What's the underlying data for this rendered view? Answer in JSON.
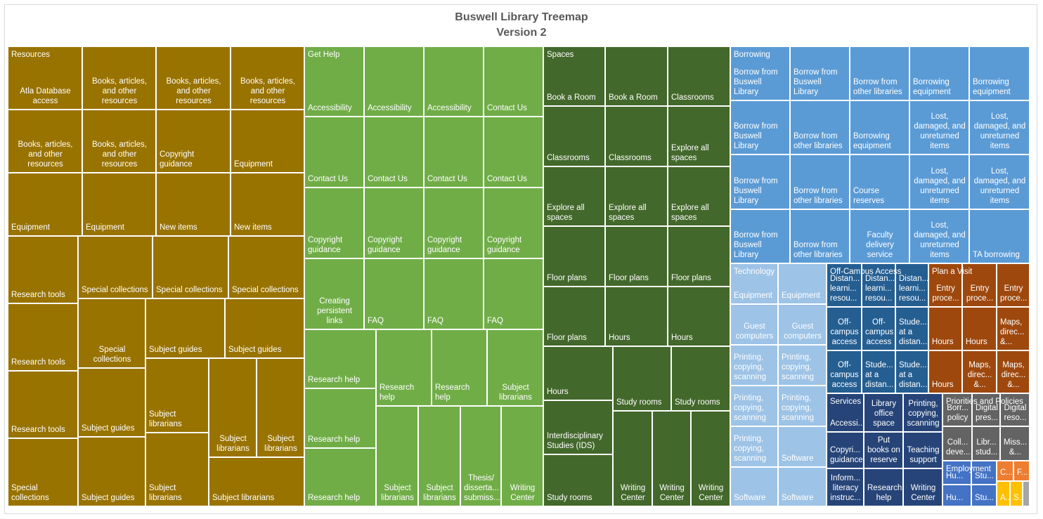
{
  "chart_data": {
    "type": "treemap",
    "title": "Buswell Library Treemap",
    "subtitle": "Version 2",
    "groups": [
      {
        "name": "Resources",
        "color": "#997300"
      },
      {
        "name": "Get Help",
        "color": "#70ad47"
      },
      {
        "name": "Spaces",
        "color": "#43682b"
      },
      {
        "name": "Borrowing",
        "color": "#5b9bd5"
      },
      {
        "name": "Technology",
        "color": "#9dc3e6"
      },
      {
        "name": "Off-Campus Access",
        "color": "#255e91"
      },
      {
        "name": "Plan a Visit",
        "color": "#9e480e"
      },
      {
        "name": "Services",
        "color": "#264478"
      },
      {
        "name": "Priorities and Policies",
        "color": "#636363"
      },
      {
        "name": "Employment",
        "color": "#4472c4"
      },
      {
        "name": "",
        "color": "#ed7d31"
      },
      {
        "name": "",
        "color": "#ffc000"
      },
      {
        "name": "",
        "color": "#a5a5a5"
      }
    ],
    "cells": [
      {
        "group": "Resources",
        "label": "Atla Database access",
        "align": "c"
      },
      {
        "group": "Resources",
        "label": "Books, articles, and other resources",
        "align": "c"
      },
      {
        "group": "Resources",
        "label": "Books, articles, and other resources",
        "align": "c"
      },
      {
        "group": "Resources",
        "label": "Books, articles, and other resources",
        "align": "c"
      },
      {
        "group": "Resources",
        "label": "Books, articles, and other resources",
        "align": "c"
      },
      {
        "group": "Resources",
        "label": "Books, articles, and other resources",
        "align": "c"
      },
      {
        "group": "Resources",
        "label": "Copyright guidance",
        "align": "l"
      },
      {
        "group": "Resources",
        "label": "Equipment",
        "align": "l"
      },
      {
        "group": "Resources",
        "label": "Equipment",
        "align": "l"
      },
      {
        "group": "Resources",
        "label": "Equipment",
        "align": "l"
      },
      {
        "group": "Resources",
        "label": "New items",
        "align": "l"
      },
      {
        "group": "Resources",
        "label": "New items",
        "align": "l"
      },
      {
        "group": "Resources",
        "label": "Research tools",
        "align": "l"
      },
      {
        "group": "Resources",
        "label": "Special collections",
        "align": "l"
      },
      {
        "group": "Resources",
        "label": "Special collections",
        "align": "l"
      },
      {
        "group": "Resources",
        "label": "Special collections",
        "align": "l"
      },
      {
        "group": "Resources",
        "label": "Research tools",
        "align": "l"
      },
      {
        "group": "Resources",
        "label": "Special collections",
        "align": "c"
      },
      {
        "group": "Resources",
        "label": "Subject guides",
        "align": "l"
      },
      {
        "group": "Resources",
        "label": "Subject guides",
        "align": "l"
      },
      {
        "group": "Resources",
        "label": "Research tools",
        "align": "l"
      },
      {
        "group": "Resources",
        "label": "Subject guides",
        "align": "l"
      },
      {
        "group": "Resources",
        "label": "Subject librarians",
        "align": "l"
      },
      {
        "group": "Resources",
        "label": "Subject librarians",
        "align": "c"
      },
      {
        "group": "Resources",
        "label": "Subject librarians",
        "align": "c"
      },
      {
        "group": "Resources",
        "label": "Special collections",
        "align": "l"
      },
      {
        "group": "Resources",
        "label": "Subject guides",
        "align": "l"
      },
      {
        "group": "Resources",
        "label": "Subject librarians",
        "align": "l"
      },
      {
        "group": "Resources",
        "label": "Subject librarians",
        "align": "l"
      },
      {
        "group": "Get Help",
        "label": "Accessibility",
        "align": "l"
      },
      {
        "group": "Get Help",
        "label": "Accessibility",
        "align": "l"
      },
      {
        "group": "Get Help",
        "label": "Accessibility",
        "align": "l"
      },
      {
        "group": "Get Help",
        "label": "Contact Us",
        "align": "l"
      },
      {
        "group": "Get Help",
        "label": "Contact Us",
        "align": "l"
      },
      {
        "group": "Get Help",
        "label": "Contact Us",
        "align": "l"
      },
      {
        "group": "Get Help",
        "label": "Contact Us",
        "align": "l"
      },
      {
        "group": "Get Help",
        "label": "Contact Us",
        "align": "l"
      },
      {
        "group": "Get Help",
        "label": "Copyright guidance",
        "align": "l"
      },
      {
        "group": "Get Help",
        "label": "Copyright guidance",
        "align": "l"
      },
      {
        "group": "Get Help",
        "label": "Copyright guidance",
        "align": "l"
      },
      {
        "group": "Get Help",
        "label": "Copyright guidance",
        "align": "l"
      },
      {
        "group": "Get Help",
        "label": "Creating persistent links",
        "align": "c"
      },
      {
        "group": "Get Help",
        "label": "FAQ",
        "align": "l"
      },
      {
        "group": "Get Help",
        "label": "FAQ",
        "align": "l"
      },
      {
        "group": "Get Help",
        "label": "FAQ",
        "align": "l"
      },
      {
        "group": "Get Help",
        "label": "Research help",
        "align": "l"
      },
      {
        "group": "Get Help",
        "label": "Research help",
        "align": "l"
      },
      {
        "group": "Get Help",
        "label": "Research help",
        "align": "l"
      },
      {
        "group": "Get Help",
        "label": "Subject librarians",
        "align": "c"
      },
      {
        "group": "Get Help",
        "label": "Research help",
        "align": "l"
      },
      {
        "group": "Get Help",
        "label": "Research help",
        "align": "l"
      },
      {
        "group": "Get Help",
        "label": "Subject librarians",
        "align": "c"
      },
      {
        "group": "Get Help",
        "label": "Subject librarians",
        "align": "c"
      },
      {
        "group": "Get Help",
        "label": "Thesis/ disserta... submiss...",
        "align": "c"
      },
      {
        "group": "Get Help",
        "label": "Writing Center",
        "align": "c"
      },
      {
        "group": "Spaces",
        "label": "Book a Room",
        "align": "l"
      },
      {
        "group": "Spaces",
        "label": "Book a Room",
        "align": "l"
      },
      {
        "group": "Spaces",
        "label": "Classrooms",
        "align": "l"
      },
      {
        "group": "Spaces",
        "label": "Classrooms",
        "align": "l"
      },
      {
        "group": "Spaces",
        "label": "Classrooms",
        "align": "l"
      },
      {
        "group": "Spaces",
        "label": "Explore all spaces",
        "align": "l"
      },
      {
        "group": "Spaces",
        "label": "Explore all spaces",
        "align": "l"
      },
      {
        "group": "Spaces",
        "label": "Explore all spaces",
        "align": "l"
      },
      {
        "group": "Spaces",
        "label": "Explore all spaces",
        "align": "l"
      },
      {
        "group": "Spaces",
        "label": "Floor plans",
        "align": "l"
      },
      {
        "group": "Spaces",
        "label": "Floor plans",
        "align": "l"
      },
      {
        "group": "Spaces",
        "label": "Floor plans",
        "align": "l"
      },
      {
        "group": "Spaces",
        "label": "Floor plans",
        "align": "l"
      },
      {
        "group": "Spaces",
        "label": "Hours",
        "align": "l"
      },
      {
        "group": "Spaces",
        "label": "Hours",
        "align": "l"
      },
      {
        "group": "Spaces",
        "label": "Hours",
        "align": "l"
      },
      {
        "group": "Spaces",
        "label": "Study rooms",
        "align": "l"
      },
      {
        "group": "Spaces",
        "label": "Study rooms",
        "align": "l"
      },
      {
        "group": "Spaces",
        "label": "Interdisciplinary Studies (IDS)",
        "align": "l"
      },
      {
        "group": "Spaces",
        "label": "Study rooms",
        "align": "l"
      },
      {
        "group": "Spaces",
        "label": "Writing Center",
        "align": "c"
      },
      {
        "group": "Spaces",
        "label": "Writing Center",
        "align": "c"
      },
      {
        "group": "Spaces",
        "label": "Writing Center",
        "align": "c"
      },
      {
        "group": "Borrowing",
        "label": "Borrow from Buswell Library",
        "align": "l"
      },
      {
        "group": "Borrowing",
        "label": "Borrow from Buswell Library",
        "align": "l"
      },
      {
        "group": "Borrowing",
        "label": "Borrow from other libraries",
        "align": "l"
      },
      {
        "group": "Borrowing",
        "label": "Borrowing equipment",
        "align": "l"
      },
      {
        "group": "Borrowing",
        "label": "Borrowing equipment",
        "align": "l"
      },
      {
        "group": "Borrowing",
        "label": "Borrow from Buswell Library",
        "align": "l"
      },
      {
        "group": "Borrowing",
        "label": "Borrow from other libraries",
        "align": "l"
      },
      {
        "group": "Borrowing",
        "label": "Borrowing equipment",
        "align": "l"
      },
      {
        "group": "Borrowing",
        "label": "Lost, damaged, and unreturned items",
        "align": "c"
      },
      {
        "group": "Borrowing",
        "label": "Lost, damaged, and unreturned items",
        "align": "c"
      },
      {
        "group": "Borrowing",
        "label": "Borrow from Buswell Library",
        "align": "l"
      },
      {
        "group": "Borrowing",
        "label": "Borrow from other libraries",
        "align": "l"
      },
      {
        "group": "Borrowing",
        "label": "Course reserves",
        "align": "l"
      },
      {
        "group": "Borrowing",
        "label": "Lost, damaged, and unreturned items",
        "align": "c"
      },
      {
        "group": "Borrowing",
        "label": "Lost, damaged, and unreturned items",
        "align": "c"
      },
      {
        "group": "Borrowing",
        "label": "Borrow from Buswell Library",
        "align": "l"
      },
      {
        "group": "Borrowing",
        "label": "Borrow from other libraries",
        "align": "l"
      },
      {
        "group": "Borrowing",
        "label": "Faculty delivery service",
        "align": "c"
      },
      {
        "group": "Borrowing",
        "label": "Lost, damaged, and unreturned items",
        "align": "c"
      },
      {
        "group": "Borrowing",
        "label": "TA borrowing",
        "align": "l"
      },
      {
        "group": "Technology",
        "label": "Equipment",
        "align": "l"
      },
      {
        "group": "Technology",
        "label": "Equipment",
        "align": "l"
      },
      {
        "group": "Technology",
        "label": "Guest computers",
        "align": "c"
      },
      {
        "group": "Technology",
        "label": "Guest computers",
        "align": "c"
      },
      {
        "group": "Technology",
        "label": "Printing, copying, scanning",
        "align": "l"
      },
      {
        "group": "Technology",
        "label": "Printing, copying, scanning",
        "align": "l"
      },
      {
        "group": "Technology",
        "label": "Printing, copying, scanning",
        "align": "l"
      },
      {
        "group": "Technology",
        "label": "Printing, copying, scanning",
        "align": "l"
      },
      {
        "group": "Technology",
        "label": "Printing, copying, scanning",
        "align": "l"
      },
      {
        "group": "Technology",
        "label": "Software",
        "align": "l"
      },
      {
        "group": "Technology",
        "label": "Software",
        "align": "l"
      },
      {
        "group": "Technology",
        "label": "Software",
        "align": "l"
      },
      {
        "group": "Off-Campus Access",
        "label": "Distan... learni... resou...",
        "align": "l"
      },
      {
        "group": "Off-Campus Access",
        "label": "Distan... learni... resou...",
        "align": "l"
      },
      {
        "group": "Off-Campus Access",
        "label": "Distan... learni... resou...",
        "align": "l"
      },
      {
        "group": "Off-Campus Access",
        "label": "Off-campus access",
        "align": "c"
      },
      {
        "group": "Off-Campus Access",
        "label": "Off-campus access",
        "align": "c"
      },
      {
        "group": "Off-Campus Access",
        "label": "Stude... at a distan...",
        "align": "l"
      },
      {
        "group": "Off-Campus Access",
        "label": "Off-campus access",
        "align": "c"
      },
      {
        "group": "Off-Campus Access",
        "label": "Stude... at a distan...",
        "align": "l"
      },
      {
        "group": "Off-Campus Access",
        "label": "Stude... at a distan...",
        "align": "l"
      },
      {
        "group": "Plan a Visit",
        "label": "Entry proce...",
        "align": "c"
      },
      {
        "group": "Plan a Visit",
        "label": "Entry proce...",
        "align": "c"
      },
      {
        "group": "Plan a Visit",
        "label": "Entry proce...",
        "align": "c"
      },
      {
        "group": "Plan a Visit",
        "label": "Hours",
        "align": "l"
      },
      {
        "group": "Plan a Visit",
        "label": "Hours",
        "align": "l"
      },
      {
        "group": "Plan a Visit",
        "label": "Maps, direc... &...",
        "align": "l"
      },
      {
        "group": "Plan a Visit",
        "label": "Hours",
        "align": "l"
      },
      {
        "group": "Plan a Visit",
        "label": "Maps, direc... &...",
        "align": "c"
      },
      {
        "group": "Plan a Visit",
        "label": "Maps, direc... &...",
        "align": "c"
      },
      {
        "group": "Services",
        "label": "Accessi...",
        "align": "l"
      },
      {
        "group": "Services",
        "label": "Library office space",
        "align": "c"
      },
      {
        "group": "Services",
        "label": "Printing, copying, scanning",
        "align": "c"
      },
      {
        "group": "Services",
        "label": "Copyri... guidance",
        "align": "l"
      },
      {
        "group": "Services",
        "label": "Put books on reserve",
        "align": "c"
      },
      {
        "group": "Services",
        "label": "Teaching support",
        "align": "c"
      },
      {
        "group": "Services",
        "label": "Inform... literacy instruc...",
        "align": "c"
      },
      {
        "group": "Services",
        "label": "Research help",
        "align": "c"
      },
      {
        "group": "Services",
        "label": "Writing Center",
        "align": "c"
      },
      {
        "group": "Priorities and Policies",
        "label": "Borr... policy",
        "align": "c"
      },
      {
        "group": "Priorities and Policies",
        "label": "Digital pres...",
        "align": "c"
      },
      {
        "group": "Priorities and Policies",
        "label": "Digital reso...",
        "align": "c"
      },
      {
        "group": "Priorities and Policies",
        "label": "Coll... deve...",
        "align": "c"
      },
      {
        "group": "Priorities and Policies",
        "label": "Libr... stud...",
        "align": "c"
      },
      {
        "group": "Priorities and Policies",
        "label": "Miss... &...",
        "align": "c"
      },
      {
        "group": "Employment",
        "label": "Hu...",
        "align": "l"
      },
      {
        "group": "Employment",
        "label": "Stu...",
        "align": "l"
      },
      {
        "group": "Employment",
        "label": "Hu...",
        "align": "l"
      },
      {
        "group": "Employment",
        "label": "Stu...",
        "align": "l"
      },
      {
        "group": "",
        "label": "C...",
        "align": "l",
        "color": "#ed7d31"
      },
      {
        "group": "",
        "label": "F...",
        "align": "l",
        "color": "#ed7d31"
      },
      {
        "group": "",
        "label": "A...",
        "align": "l",
        "color": "#ffc000"
      },
      {
        "group": "",
        "label": "S...",
        "align": "l",
        "color": "#ffc000"
      },
      {
        "group": "",
        "label": "",
        "align": "l",
        "color": "#a5a5a5"
      }
    ]
  }
}
